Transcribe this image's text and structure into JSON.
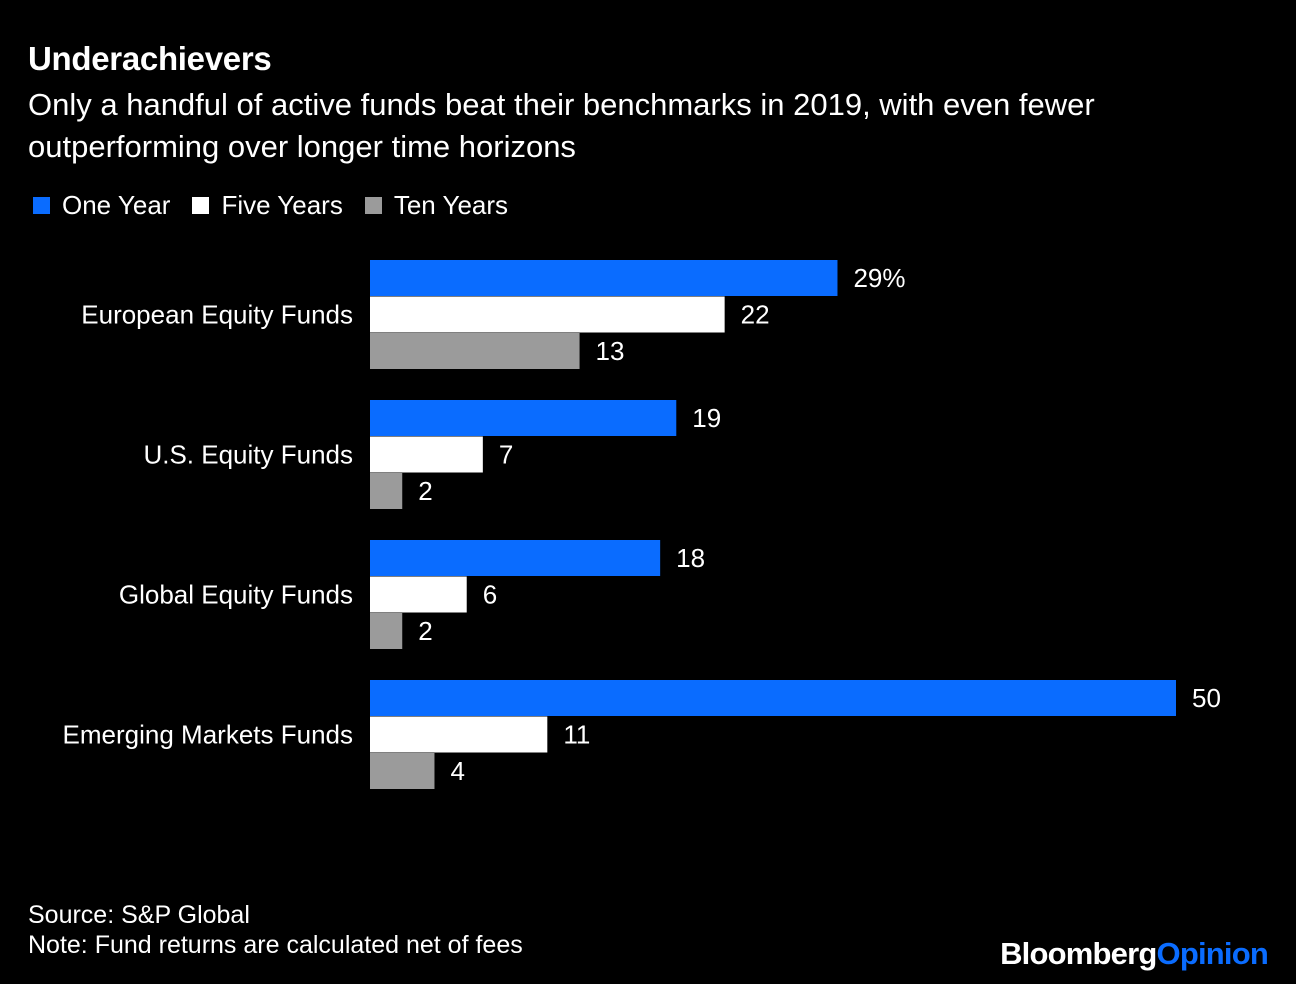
{
  "title": "Underachievers",
  "subtitle": "Only a handful of active funds beat their benchmarks in 2019, with even fewer outperforming over longer time horizons",
  "legend": {
    "placement": "top-left",
    "items": [
      {
        "label": "One Year",
        "color": "#0a6cff"
      },
      {
        "label": "Five Years",
        "color": "#ffffff"
      },
      {
        "label": "Ten Years",
        "color": "#9b9b9b"
      }
    ]
  },
  "chart_data": {
    "type": "bar",
    "orientation": "horizontal",
    "categories": [
      "European Equity Funds",
      "U.S. Equity Funds",
      "Global Equity Funds",
      "Emerging Markets Funds"
    ],
    "series": [
      {
        "name": "One Year",
        "color": "#0a6cff",
        "values": [
          29,
          19,
          18,
          50
        ]
      },
      {
        "name": "Five Years",
        "color": "#ffffff",
        "values": [
          22,
          7,
          6,
          11
        ]
      },
      {
        "name": "Ten Years",
        "color": "#9b9b9b",
        "values": [
          13,
          2,
          2,
          4
        ]
      }
    ],
    "data_labels": [
      [
        "29%",
        "22",
        "13"
      ],
      [
        "19",
        "7",
        "2"
      ],
      [
        "18",
        "6",
        "2"
      ],
      [
        "50",
        "11",
        "4"
      ]
    ],
    "xlim": [
      0,
      50
    ],
    "grid": false,
    "unit": "%"
  },
  "footer": {
    "source": "Source: S&P Global",
    "note": "Note: Fund returns are calculated net of fees"
  },
  "brand": {
    "part1": "Bloomberg",
    "part2": "Opinion",
    "part1_color": "#ffffff",
    "part2_color": "#0a6cff"
  }
}
